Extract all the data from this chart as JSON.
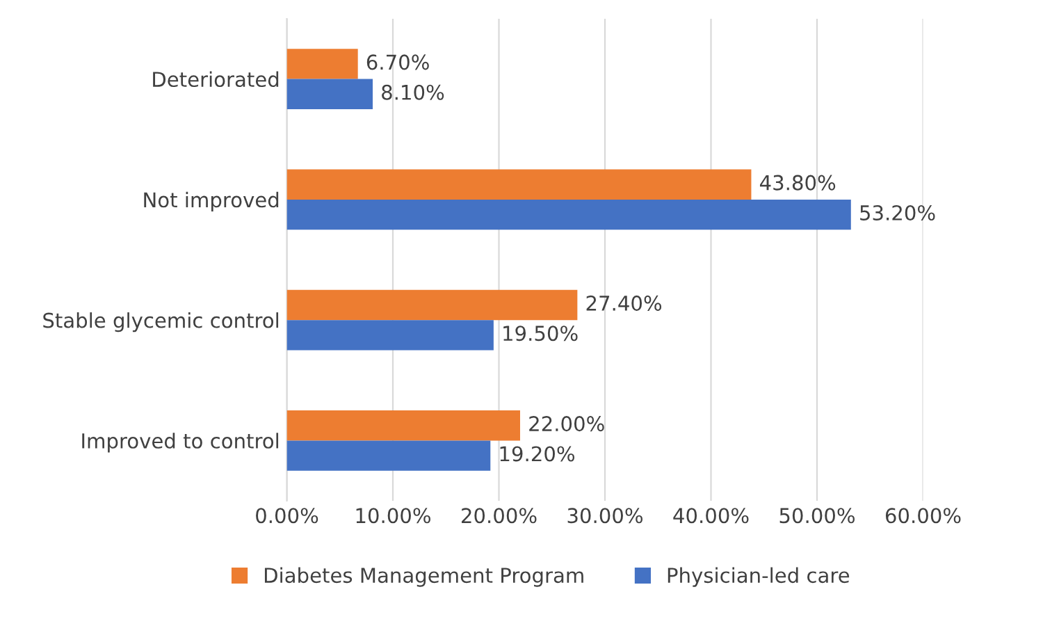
{
  "chart_data": {
    "type": "bar",
    "orientation": "horizontal",
    "categories": [
      "Deteriorated",
      "Not improved",
      "Stable glycemic control",
      "Improved to control"
    ],
    "series": [
      {
        "name": "Diabetes Management Program",
        "color": "#ed7d31",
        "values": [
          6.7,
          43.8,
          27.4,
          22.0
        ],
        "value_labels": [
          "6.70%",
          "43.80%",
          "27.40%",
          "22.00%"
        ]
      },
      {
        "name": "Physician-led care",
        "color": "#4472c4",
        "values": [
          8.1,
          53.2,
          19.5,
          19.2
        ],
        "value_labels": [
          "8.10%",
          "53.20%",
          "19.50%",
          "19.20%"
        ]
      }
    ],
    "xlim": [
      0,
      60
    ],
    "xticks": [
      {
        "value": 0,
        "label": "0.00%"
      },
      {
        "value": 10,
        "label": "10.00%"
      },
      {
        "value": 20,
        "label": "20.00%"
      },
      {
        "value": 30,
        "label": "30.00%"
      },
      {
        "value": 40,
        "label": "40.00%"
      },
      {
        "value": 50,
        "label": "50.00%"
      },
      {
        "value": 60,
        "label": "60.00%"
      }
    ],
    "grid": "x",
    "legend": "bottom"
  }
}
